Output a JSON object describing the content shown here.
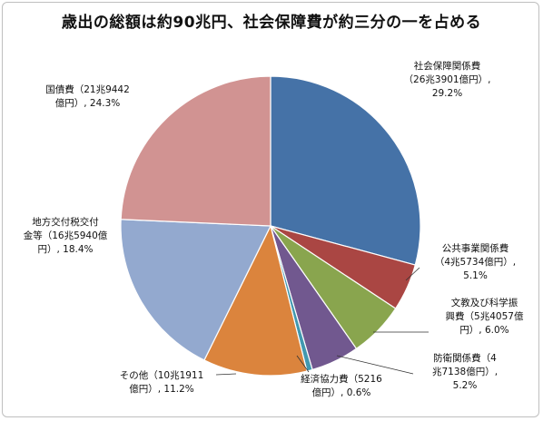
{
  "chart_data": {
    "type": "pie",
    "title": "歳出の総額は約90兆円、社会保障費が約三分の一を占める",
    "slices": [
      {
        "name": "社会保障関係費",
        "amount": "26兆3901億円",
        "value": 29.2,
        "label": "社会保障関係費\n（26兆3901億円）,\n29.2%",
        "color": "#4572A7"
      },
      {
        "name": "公共事業関係費",
        "amount": "4兆5734億円",
        "value": 5.1,
        "label": "公共事業関係費\n（4兆5734億円）,\n5.1%",
        "color": "#AA4643"
      },
      {
        "name": "文教及び科学振興費",
        "amount": "5兆4057億円",
        "value": 6.0,
        "label": "文教及び科学振\n興費（5兆4057億\n円）, 6.0%",
        "color": "#89A54E"
      },
      {
        "name": "防衛関係費",
        "amount": "4兆7138億円",
        "value": 5.2,
        "label": "防衛関係費（4\n兆7138億円）,\n5.2%",
        "color": "#71588F"
      },
      {
        "name": "経済協力費",
        "amount": "5216億円",
        "value": 0.6,
        "label": "経済協力費（5216\n億円）, 0.6%",
        "color": "#4198AF"
      },
      {
        "name": "その他",
        "amount": "10兆1911億円",
        "value": 11.2,
        "label": "その他（10兆1911\n億円）, 11.2%",
        "color": "#DB843D"
      },
      {
        "name": "地方交付税交付金等",
        "amount": "16兆5940億円",
        "value": 18.4,
        "label": "地方交付税交付\n金等（16兆5940億\n円）, 18.4%",
        "color": "#93A9CF"
      },
      {
        "name": "国債費",
        "amount": "21兆9442億円",
        "value": 24.3,
        "label": "国債費（21兆9442\n億円）, 24.3%",
        "color": "#D19392"
      }
    ],
    "legend": "none"
  }
}
